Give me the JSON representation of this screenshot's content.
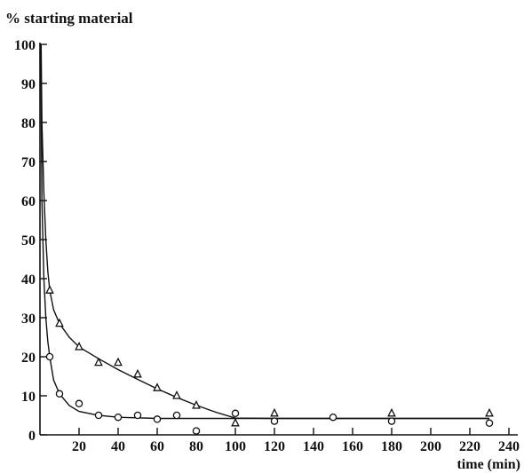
{
  "chart_data": {
    "type": "scatter",
    "title": "",
    "ylabel": "% starting material",
    "xlabel": "time (min)",
    "xlim": [
      0,
      240
    ],
    "ylim": [
      0,
      100
    ],
    "xticks": [
      20,
      40,
      60,
      80,
      100,
      120,
      140,
      160,
      180,
      200,
      220,
      240
    ],
    "yticks": [
      0,
      10,
      20,
      30,
      40,
      50,
      60,
      70,
      80,
      90,
      100
    ],
    "grid": false,
    "series": [
      {
        "marker": "triangle",
        "points": [
          [
            5,
            37
          ],
          [
            10,
            28.5
          ],
          [
            20,
            22.5
          ],
          [
            30,
            18.5
          ],
          [
            40,
            18.5
          ],
          [
            50,
            15.5
          ],
          [
            60,
            12
          ],
          [
            70,
            10
          ],
          [
            80,
            7.5
          ],
          [
            100,
            3
          ],
          [
            120,
            5.5
          ],
          [
            180,
            5.5
          ],
          [
            230,
            5.5
          ]
        ],
        "curve": [
          [
            0.6,
            100
          ],
          [
            1,
            80
          ],
          [
            2,
            62
          ],
          [
            3,
            50
          ],
          [
            4,
            42
          ],
          [
            5,
            37
          ],
          [
            7,
            32
          ],
          [
            10,
            28.5
          ],
          [
            15,
            25
          ],
          [
            20,
            22.5
          ],
          [
            30,
            19.5
          ],
          [
            40,
            16.7
          ],
          [
            50,
            14.2
          ],
          [
            60,
            11.8
          ],
          [
            70,
            9.6
          ],
          [
            80,
            7.6
          ],
          [
            90,
            5.8
          ],
          [
            100,
            4.3
          ],
          [
            120,
            4.2
          ],
          [
            180,
            4.2
          ],
          [
            230,
            4.2
          ]
        ]
      },
      {
        "marker": "circle",
        "points": [
          [
            5,
            20
          ],
          [
            10,
            10.5
          ],
          [
            20,
            8
          ],
          [
            30,
            5
          ],
          [
            40,
            4.5
          ],
          [
            50,
            5
          ],
          [
            60,
            4
          ],
          [
            70,
            5
          ],
          [
            80,
            1
          ],
          [
            100,
            5.5
          ],
          [
            120,
            3.5
          ],
          [
            150,
            4.5
          ],
          [
            180,
            3.5
          ],
          [
            230,
            3
          ]
        ],
        "curve": [
          [
            0.4,
            100
          ],
          [
            1,
            60
          ],
          [
            2,
            40
          ],
          [
            3,
            30
          ],
          [
            4,
            24
          ],
          [
            5,
            20
          ],
          [
            7,
            14
          ],
          [
            10,
            10.5
          ],
          [
            15,
            7.5
          ],
          [
            20,
            6
          ],
          [
            30,
            5
          ],
          [
            40,
            4.5
          ],
          [
            60,
            4.2
          ],
          [
            100,
            4.2
          ],
          [
            230,
            4.2
          ]
        ]
      }
    ]
  }
}
